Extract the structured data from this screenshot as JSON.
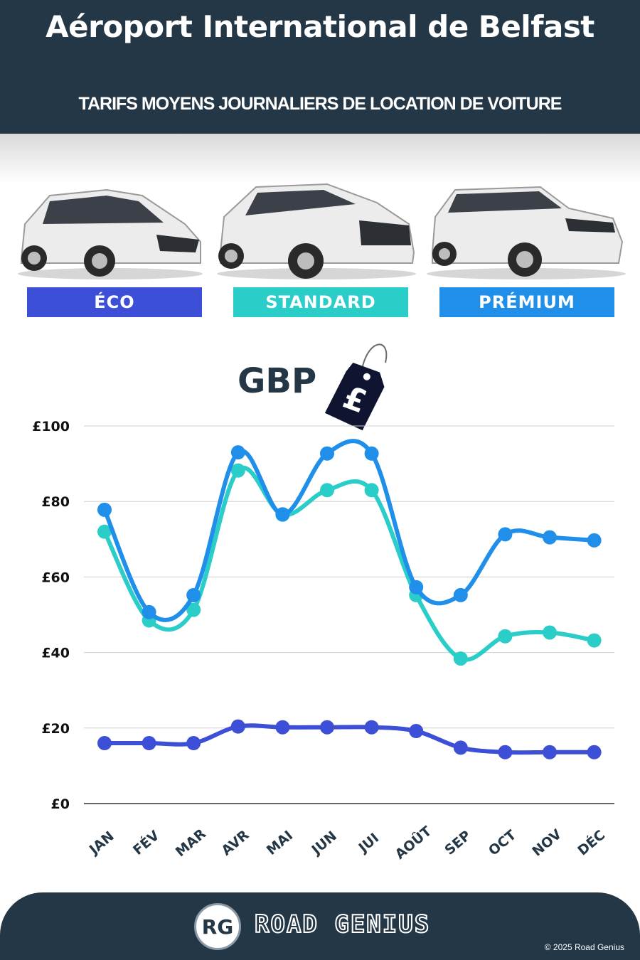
{
  "header": {
    "title": "Aéroport International de Belfast",
    "subtitle": "TARIFS MOYENS JOURNALIERS DE LOCATION DE VOITURE"
  },
  "categories": [
    {
      "label": "ÉCO",
      "color": "#3d4fd6"
    },
    {
      "label": "STANDARD",
      "color": "#2bcdc9"
    },
    {
      "label": "PRÉMIUM",
      "color": "#1f8fea"
    }
  ],
  "currency": {
    "label": "GBP",
    "symbol": "£"
  },
  "chart_data": {
    "type": "line",
    "categories": [
      "JAN",
      "FÉV",
      "MAR",
      "AVR",
      "MAI",
      "JUN",
      "JUI",
      "AOÛT",
      "SEP",
      "OCT",
      "NOV",
      "DÉC"
    ],
    "series": [
      {
        "name": "ÉCO",
        "color": "#3d4fd6",
        "values": [
          16,
          16,
          16,
          20.4,
          20.2,
          20.2,
          20.2,
          19.2,
          14.8,
          13.6,
          13.6,
          13.6
        ]
      },
      {
        "name": "STANDARD",
        "color": "#2bcdc9",
        "values": [
          72,
          48.5,
          51.3,
          88.2,
          76.5,
          83,
          83,
          55.2,
          38.4,
          44.3,
          45.3,
          43.2
        ]
      },
      {
        "name": "PRÉMIUM",
        "color": "#1f8fea",
        "values": [
          77.8,
          50.7,
          55.2,
          93,
          76.6,
          92.7,
          92.7,
          57.3,
          55.2,
          71.3,
          70.5,
          69.7
        ]
      }
    ],
    "yticks": [
      "£0",
      "£20",
      "£40",
      "£60",
      "£80",
      "£100"
    ],
    "ylim": [
      0,
      100
    ],
    "grid": true
  },
  "footer": {
    "logo": "RG",
    "brand": "ROAD GENIUS",
    "copyright": "© 2025 Road Genius"
  }
}
